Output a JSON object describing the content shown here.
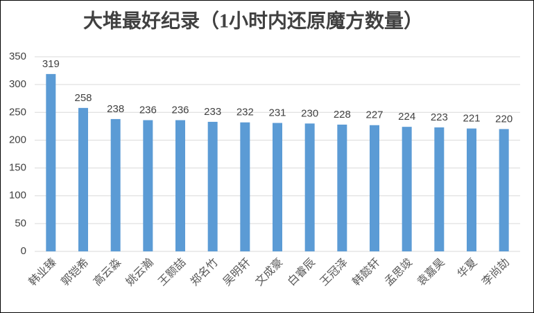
{
  "chart_data": {
    "type": "bar",
    "title": "大堆最好纪录（1小时内还原魔方数量）",
    "categories": [
      "韩业臻",
      "郭铠希",
      "高云淼",
      "姚云瀚",
      "王颢喆",
      "郑名竹",
      "吴明轩",
      "文成豪",
      "白睿辰",
      "王冠泽",
      "韩懿轩",
      "孟思竣",
      "袁嘉昊",
      "华夏",
      "李尚劼"
    ],
    "values": [
      319,
      258,
      238,
      236,
      236,
      233,
      232,
      231,
      230,
      228,
      227,
      224,
      223,
      221,
      220
    ],
    "color": "#5b9bd5",
    "ylim": [
      0,
      350
    ],
    "yticks": [
      0,
      50,
      100,
      150,
      200,
      250,
      300,
      350
    ],
    "grid": true
  }
}
